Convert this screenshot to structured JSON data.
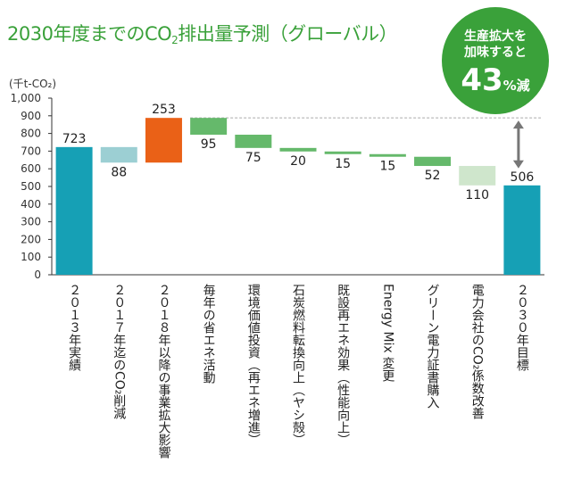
{
  "title": {
    "prefix": "2030年度までのCO",
    "sub": "2",
    "suffix": "排出量予測（グローバル）"
  },
  "badge": {
    "line1": "生産拡大を",
    "line2": "加味すると",
    "value": "43",
    "unit": "%減"
  },
  "colors": {
    "total": "#16a0b5",
    "positive": "#ea6117",
    "reduction_light": "#9ccfd3",
    "reduction": "#65b96b",
    "reduction_last": "#cfe6cc",
    "title": "#3aa13a",
    "axis": "#333333",
    "grid": "#aaaaaa",
    "arrow": "#777777"
  },
  "chart_data": {
    "type": "bar",
    "subtype": "waterfall",
    "ylabel": "(千t-CO₂)",
    "ylim": [
      0,
      1000
    ],
    "yticks": [
      "0",
      "100",
      "200",
      "300",
      "400",
      "500",
      "600",
      "700",
      "800",
      "900",
      "1,000"
    ],
    "categories": [
      "２０１３年実績",
      "２０１７年迄のCO₂削減",
      "２０１８年以降の事業拡大影響",
      "毎年の省エネ活動",
      "環境価値投資（再エネ増進）",
      "石炭燃料転換向上（ヤシ殻）",
      "既設再エネ効果（性能向上）",
      "Energy Mix 変更",
      "グリーン電力証書購入",
      "電力会社のCO₂係数改善",
      "２０３０年目標"
    ],
    "kinds": [
      "total",
      "decrease",
      "increase",
      "decrease",
      "decrease",
      "decrease",
      "decrease",
      "decrease",
      "decrease",
      "decrease",
      "total"
    ],
    "values": [
      723,
      88,
      253,
      95,
      75,
      20,
      15,
      15,
      52,
      110,
      506
    ],
    "labels": [
      "723",
      "88",
      "253",
      "95",
      "75",
      "20",
      "15",
      "15",
      "52",
      "110",
      "506"
    ],
    "reference_line": 888
  }
}
